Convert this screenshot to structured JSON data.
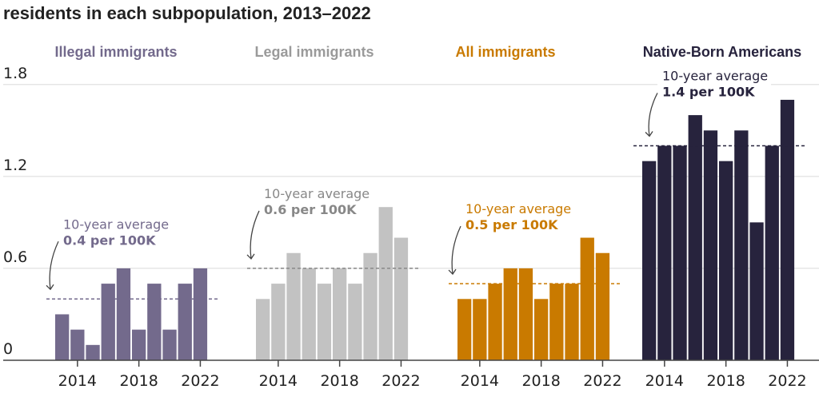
{
  "chart_data": [
    {
      "type": "bar",
      "title": "residents in each subpopulation, 2013–2022",
      "ylim": [
        0,
        1.8
      ],
      "yticks": [
        "0",
        "0.6",
        "1.2",
        "1.8"
      ],
      "xticks": [
        "2014",
        "2018",
        "2022"
      ],
      "grid": true,
      "categories": [
        2013,
        2014,
        2015,
        2016,
        2017,
        2018,
        2019,
        2020,
        2021,
        2022
      ],
      "series": [
        {
          "name": "Illegal immigrants",
          "color": "#736a8c",
          "values": [
            0.3,
            0.2,
            0.1,
            0.5,
            0.6,
            0.2,
            0.5,
            0.2,
            0.5,
            0.6
          ],
          "average": 0.4,
          "annotation": {
            "line1": "10-year average",
            "line2": "0.4 per 100K"
          }
        },
        {
          "name": "Legal immigrants",
          "color": "#c2c2c2",
          "label_color": "#9a9a9a",
          "values": [
            0.4,
            0.5,
            0.7,
            0.6,
            0.5,
            0.6,
            0.5,
            0.7,
            1.0,
            0.8
          ],
          "average": 0.6,
          "annotation": {
            "line1": "10-year average",
            "line2": "0.6 per 100K"
          }
        },
        {
          "name": "All immigrants",
          "color": "#c97a00",
          "values": [
            0.4,
            0.4,
            0.5,
            0.6,
            0.6,
            0.4,
            0.5,
            0.5,
            0.8,
            0.7
          ],
          "average": 0.5,
          "annotation": {
            "line1": "10-year average",
            "line2": "0.5 per 100K"
          }
        },
        {
          "name": "Native-Born Americans",
          "color": "#27233d",
          "values": [
            1.3,
            1.4,
            1.4,
            1.6,
            1.5,
            1.3,
            1.5,
            0.9,
            1.4,
            1.7
          ],
          "average": 1.4,
          "annotation": {
            "line1": "10-year average",
            "line2": "1.4 per 100K"
          }
        }
      ]
    }
  ]
}
